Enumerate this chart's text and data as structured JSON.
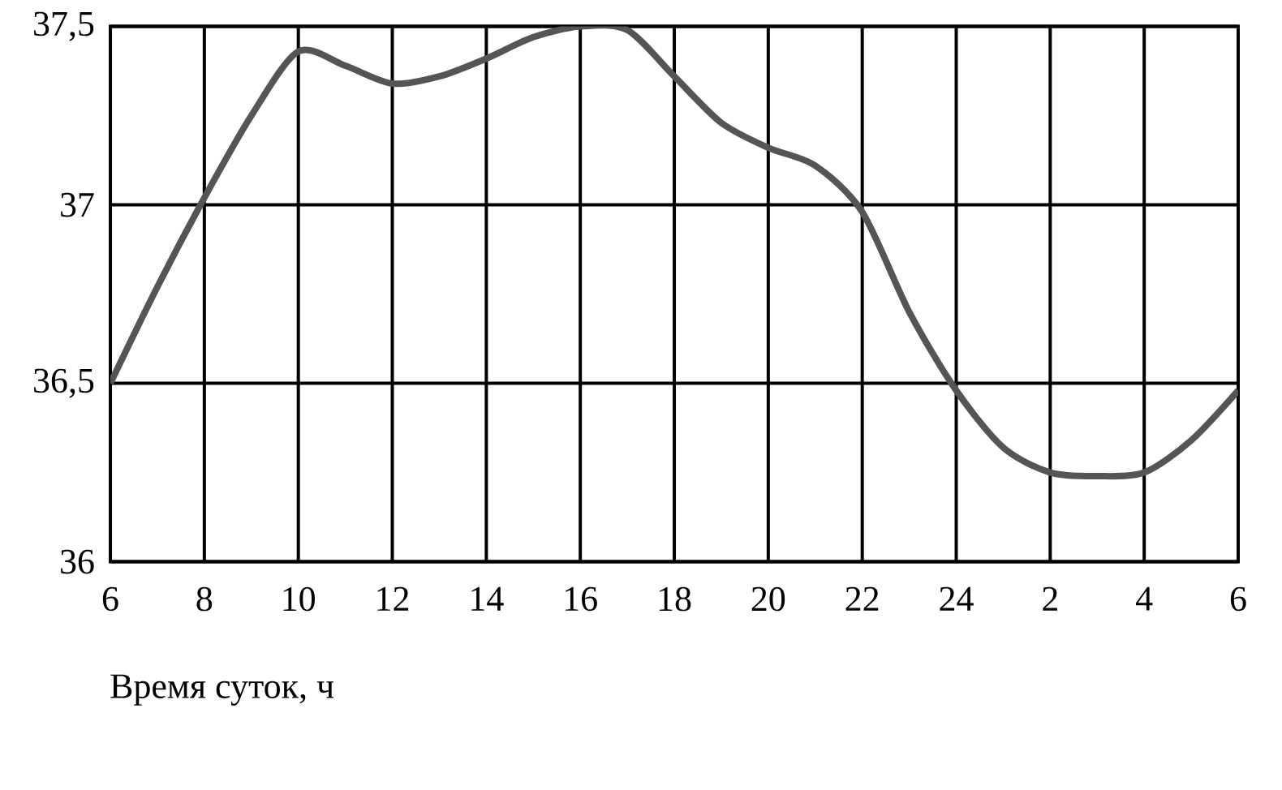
{
  "chart_data": {
    "type": "line",
    "xlabel": "Время суток, ч",
    "categories": [
      "6",
      null,
      "8",
      null,
      "10",
      null,
      "12",
      null,
      "14",
      null,
      "16",
      null,
      "18",
      null,
      "20",
      null,
      "22",
      null,
      "24",
      null,
      "2",
      null,
      "4",
      null,
      "6"
    ],
    "series": [
      {
        "color": "#555555",
        "values": [
          36.5,
          36.77,
          37.02,
          37.25,
          37.43,
          37.39,
          37.34,
          37.36,
          37.41,
          37.47,
          37.5,
          37.49,
          37.36,
          37.23,
          37.16,
          37.11,
          36.98,
          36.7,
          36.48,
          36.32,
          36.25,
          36.24,
          36.25,
          36.34,
          36.48
        ]
      }
    ],
    "ylim": [
      36,
      37.5
    ],
    "yticks": [
      36,
      {
        "value": 36.5,
        "label": "36,5"
      },
      37,
      {
        "value": 37.5,
        "label": "37,5"
      }
    ],
    "grid": true,
    "line_style": "solid"
  }
}
